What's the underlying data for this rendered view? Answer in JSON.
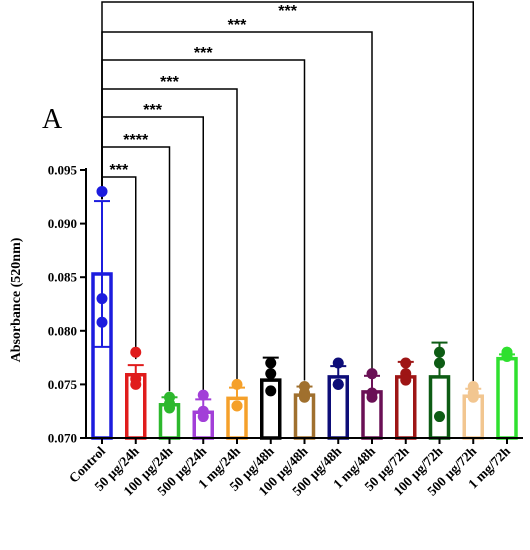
{
  "chart_data": {
    "type": "bar",
    "panel_label": "A",
    "ylabel": "Absorbance (520nm)",
    "ylim": [
      0.07,
      0.095
    ],
    "yticks": [
      "0.070",
      "0.075",
      "0.080",
      "0.085",
      "0.090",
      "0.095"
    ],
    "grid": false,
    "categories": [
      "Control",
      "50 µg/24h",
      "100 µg/24h",
      "500 µg/24h",
      "1 mg/24h",
      "50 µg/48h",
      "100 µg/48h",
      "500 µg/48h",
      "1 mg/48h",
      "50 µg/72h",
      "100 µg/72h",
      "500 µg/72h",
      "1 mg/72h"
    ],
    "values": [
      0.0853,
      0.0759,
      0.0731,
      0.0724,
      0.0737,
      0.0754,
      0.074,
      0.0757,
      0.0743,
      0.0757,
      0.0757,
      0.0739,
      0.0774
    ],
    "errors": [
      0.0068,
      0.0009,
      0.0007,
      0.0012,
      0.001,
      0.0021,
      0.0008,
      0.001,
      0.0015,
      0.0014,
      0.0032,
      0.0007,
      0.0004
    ],
    "points": [
      [
        0.093,
        0.083,
        0.0808
      ],
      [
        0.078,
        0.0755,
        0.075
      ],
      [
        0.0738,
        0.0732,
        0.0728
      ],
      [
        0.074,
        0.0725,
        0.072
      ],
      [
        0.075,
        0.073,
        0.073
      ],
      [
        0.077,
        0.076,
        0.0744
      ],
      [
        0.0748,
        0.0742,
        0.0738
      ],
      [
        0.077,
        0.075,
        0.075
      ],
      [
        0.076,
        0.0742,
        0.0738
      ],
      [
        0.077,
        0.076,
        0.0754
      ],
      [
        0.078,
        0.077,
        0.072
      ],
      [
        0.0748,
        0.0742,
        0.0738
      ],
      [
        0.078,
        0.078,
        0.0776
      ]
    ],
    "colors": [
      "#1c1cde",
      "#e01c1c",
      "#2db82d",
      "#a23fd8",
      "#f5a02a",
      "#000000",
      "#a0702e",
      "#0d0d78",
      "#6a1055",
      "#9e1515",
      "#0d5c14",
      "#f2c690",
      "#2fe02f"
    ],
    "significance": [
      {
        "target": 1,
        "label": "***"
      },
      {
        "target": 2,
        "label": "****"
      },
      {
        "target": 3,
        "label": "***"
      },
      {
        "target": 4,
        "label": "***"
      },
      {
        "target": 6,
        "label": "***"
      },
      {
        "target": 8,
        "label": "***"
      },
      {
        "target": 11,
        "label": "***"
      }
    ]
  }
}
